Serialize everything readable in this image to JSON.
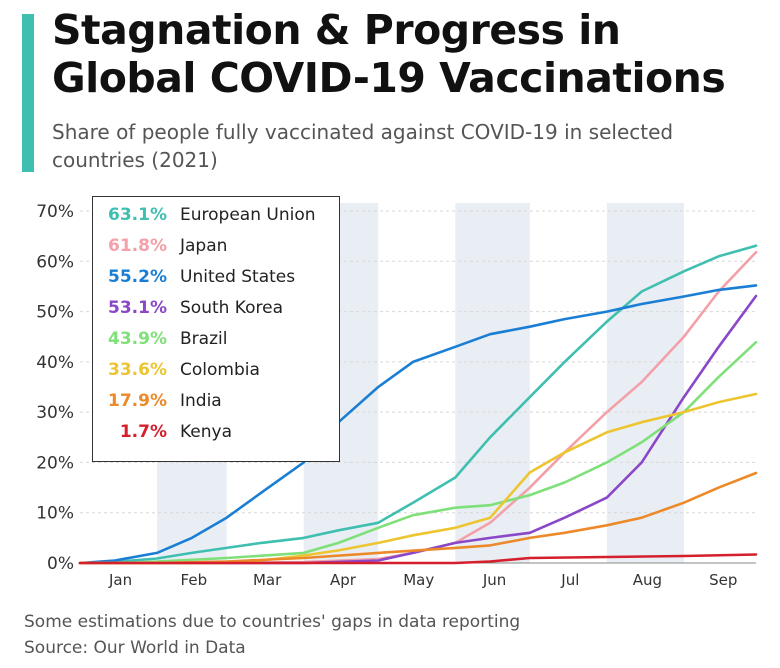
{
  "header": {
    "title": "Stagnation & Progress in Global COVID-19 Vaccinations",
    "subtitle": "Share of people fully vaccinated against COVID-19 in selected countries (2021)"
  },
  "footer": {
    "note": "Some estimations due to countries' gaps in data reporting",
    "source": "Source: Our World in Data"
  },
  "colors": {
    "accent": "#3fbfb0",
    "shaded_month": "#e9eef4"
  },
  "chart_data": {
    "type": "line",
    "title": "Stagnation & Progress in Global COVID-19 Vaccinations",
    "subtitle": "Share of people fully vaccinated against COVID-19 in selected countries (2021)",
    "x_months": [
      "Jan",
      "Feb",
      "Mar",
      "Apr",
      "May",
      "Jun",
      "Jul",
      "Aug",
      "Sep"
    ],
    "shaded_months": [
      "Feb",
      "Apr",
      "Jun",
      "Aug"
    ],
    "x_start": "2021-01-01",
    "x_end": "2021-09-30",
    "ylim": [
      0,
      70
    ],
    "yticks": [
      "0%",
      "10%",
      "20%",
      "30%",
      "40%",
      "50%",
      "60%",
      "70%"
    ],
    "grid": true,
    "legend_position": "top-left",
    "series": [
      {
        "name": "European Union",
        "label": "63.1%",
        "color": "#3fbfb0",
        "points": [
          [
            "2021-01-01",
            0
          ],
          [
            "2021-01-15",
            0.2
          ],
          [
            "2021-02-01",
            0.9
          ],
          [
            "2021-02-15",
            2
          ],
          [
            "2021-03-01",
            3
          ],
          [
            "2021-03-15",
            4
          ],
          [
            "2021-04-01",
            5
          ],
          [
            "2021-04-15",
            6.5
          ],
          [
            "2021-05-01",
            8
          ],
          [
            "2021-05-15",
            12
          ],
          [
            "2021-06-01",
            17
          ],
          [
            "2021-06-15",
            25
          ],
          [
            "2021-07-01",
            33
          ],
          [
            "2021-07-15",
            40
          ],
          [
            "2021-08-01",
            48
          ],
          [
            "2021-08-15",
            54
          ],
          [
            "2021-09-01",
            58
          ],
          [
            "2021-09-15",
            61
          ],
          [
            "2021-09-30",
            63.1
          ]
        ]
      },
      {
        "name": "Japan",
        "label": "61.8%",
        "color": "#f4a0a8",
        "points": [
          [
            "2021-01-01",
            0
          ],
          [
            "2021-03-01",
            0
          ],
          [
            "2021-04-01",
            0.2
          ],
          [
            "2021-05-01",
            0.8
          ],
          [
            "2021-05-15",
            2
          ],
          [
            "2021-06-01",
            4
          ],
          [
            "2021-06-15",
            8
          ],
          [
            "2021-07-01",
            15
          ],
          [
            "2021-07-15",
            22
          ],
          [
            "2021-08-01",
            30
          ],
          [
            "2021-08-15",
            36
          ],
          [
            "2021-09-01",
            45
          ],
          [
            "2021-09-15",
            54
          ],
          [
            "2021-09-30",
            61.8
          ]
        ]
      },
      {
        "name": "United States",
        "label": "55.2%",
        "color": "#1a7fd4",
        "points": [
          [
            "2021-01-01",
            0
          ],
          [
            "2021-01-15",
            0.5
          ],
          [
            "2021-02-01",
            2
          ],
          [
            "2021-02-15",
            5
          ],
          [
            "2021-03-01",
            9
          ],
          [
            "2021-03-15",
            14
          ],
          [
            "2021-04-01",
            20
          ],
          [
            "2021-04-15",
            28
          ],
          [
            "2021-05-01",
            35
          ],
          [
            "2021-05-15",
            40
          ],
          [
            "2021-06-01",
            43
          ],
          [
            "2021-06-15",
            45.5
          ],
          [
            "2021-07-01",
            47
          ],
          [
            "2021-07-15",
            48.5
          ],
          [
            "2021-08-01",
            50
          ],
          [
            "2021-08-15",
            51.5
          ],
          [
            "2021-09-01",
            53
          ],
          [
            "2021-09-15",
            54.3
          ],
          [
            "2021-09-30",
            55.2
          ]
        ]
      },
      {
        "name": "South Korea",
        "label": "53.1%",
        "color": "#8a47c8",
        "points": [
          [
            "2021-01-01",
            0
          ],
          [
            "2021-04-01",
            0
          ],
          [
            "2021-05-01",
            0.5
          ],
          [
            "2021-05-15",
            2
          ],
          [
            "2021-06-01",
            4
          ],
          [
            "2021-06-15",
            5
          ],
          [
            "2021-07-01",
            6
          ],
          [
            "2021-07-15",
            9
          ],
          [
            "2021-08-01",
            13
          ],
          [
            "2021-08-15",
            20
          ],
          [
            "2021-09-01",
            33
          ],
          [
            "2021-09-15",
            43
          ],
          [
            "2021-09-30",
            53.1
          ]
        ]
      },
      {
        "name": "Brazil",
        "label": "43.9%",
        "color": "#7fe07a",
        "points": [
          [
            "2021-01-01",
            0
          ],
          [
            "2021-01-20",
            0
          ],
          [
            "2021-02-01",
            0.3
          ],
          [
            "2021-03-01",
            1
          ],
          [
            "2021-04-01",
            2
          ],
          [
            "2021-04-15",
            4
          ],
          [
            "2021-05-01",
            7
          ],
          [
            "2021-05-15",
            9.5
          ],
          [
            "2021-06-01",
            11
          ],
          [
            "2021-06-15",
            11.5
          ],
          [
            "2021-07-01",
            13.5
          ],
          [
            "2021-07-15",
            16
          ],
          [
            "2021-08-01",
            20
          ],
          [
            "2021-08-15",
            24
          ],
          [
            "2021-09-01",
            30
          ],
          [
            "2021-09-15",
            37
          ],
          [
            "2021-09-30",
            43.9
          ]
        ]
      },
      {
        "name": "Colombia",
        "label": "33.6%",
        "color": "#ecc531",
        "points": [
          [
            "2021-01-01",
            0
          ],
          [
            "2021-03-01",
            0
          ],
          [
            "2021-03-15",
            0.5
          ],
          [
            "2021-04-01",
            1.5
          ],
          [
            "2021-04-15",
            2.5
          ],
          [
            "2021-05-01",
            4
          ],
          [
            "2021-05-15",
            5.5
          ],
          [
            "2021-06-01",
            7
          ],
          [
            "2021-06-15",
            9
          ],
          [
            "2021-07-01",
            18
          ],
          [
            "2021-07-15",
            22
          ],
          [
            "2021-08-01",
            26
          ],
          [
            "2021-08-15",
            28
          ],
          [
            "2021-09-01",
            30
          ],
          [
            "2021-09-15",
            32
          ],
          [
            "2021-09-30",
            33.6
          ]
        ]
      },
      {
        "name": "India",
        "label": "17.9%",
        "color": "#ec8a2a",
        "points": [
          [
            "2021-01-01",
            0
          ],
          [
            "2021-02-01",
            0
          ],
          [
            "2021-03-01",
            0.3
          ],
          [
            "2021-04-01",
            1
          ],
          [
            "2021-05-01",
            2
          ],
          [
            "2021-06-01",
            3
          ],
          [
            "2021-06-15",
            3.5
          ],
          [
            "2021-07-01",
            5
          ],
          [
            "2021-07-15",
            6
          ],
          [
            "2021-08-01",
            7.5
          ],
          [
            "2021-08-15",
            9
          ],
          [
            "2021-09-01",
            12
          ],
          [
            "2021-09-15",
            15
          ],
          [
            "2021-09-30",
            17.9
          ]
        ]
      },
      {
        "name": "Kenya",
        "label": "1.7%",
        "color": "#d61f2c",
        "points": [
          [
            "2021-01-01",
            0
          ],
          [
            "2021-06-01",
            0
          ],
          [
            "2021-06-15",
            0.3
          ],
          [
            "2021-07-01",
            1
          ],
          [
            "2021-08-01",
            1.2
          ],
          [
            "2021-09-01",
            1.4
          ],
          [
            "2021-09-30",
            1.7
          ]
        ]
      }
    ]
  }
}
